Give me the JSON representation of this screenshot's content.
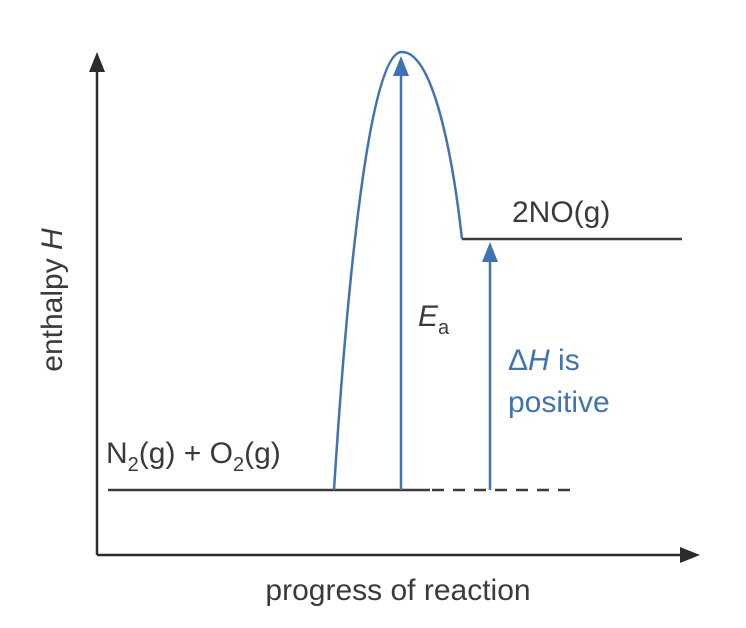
{
  "axes": {
    "y_label_text": "enthalpy ",
    "y_label_symbol": "H",
    "x_label": "progress of reaction"
  },
  "reactants": {
    "n": "N",
    "n_sub": "2",
    "n_state": "(g) + O",
    "o_sub": "2",
    "o_state": "(g)"
  },
  "products": {
    "label": "2NO(g)"
  },
  "activation_energy": {
    "symbol": "E",
    "subscript": "a"
  },
  "enthalpy_change": {
    "delta": "Δ",
    "symbol": "H",
    "line1_rest": " is",
    "line2": "positive"
  },
  "colors": {
    "axis": "#2b2b2b",
    "level": "#3a3a3a",
    "curve": "#3f73b4",
    "text": "#3a3a3a",
    "accent_text": "#3f73b4"
  }
}
